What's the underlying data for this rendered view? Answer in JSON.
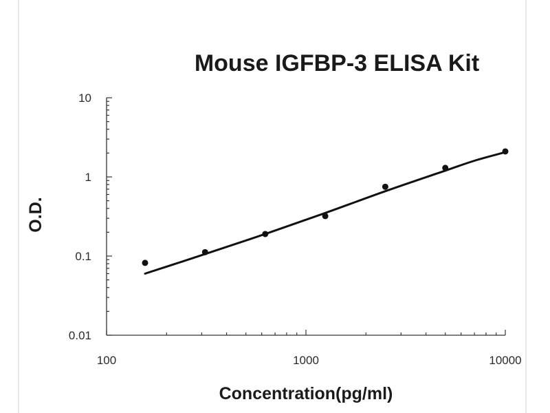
{
  "chart_data": {
    "type": "scatter",
    "title": "Mouse IGFBP-3 ELISA Kit",
    "xlabel": "Concentration(pg/ml)",
    "ylabel": "O.D.",
    "x_scale": "log",
    "y_scale": "log",
    "xlim": [
      100,
      10000
    ],
    "ylim": [
      0.01,
      10
    ],
    "x_ticks": [
      100,
      1000,
      10000
    ],
    "x_tick_labels": [
      "100",
      "1000",
      "10000"
    ],
    "y_ticks": [
      0.01,
      0.1,
      1,
      10
    ],
    "y_tick_labels": [
      "0.01",
      "0.1",
      "1",
      "10"
    ],
    "grid": false,
    "legend": "none",
    "series": [
      {
        "x": [
          156,
          312,
          625,
          1250,
          2500,
          5000,
          10000
        ],
        "y": [
          0.082,
          0.112,
          0.19,
          0.32,
          0.75,
          1.3,
          2.1
        ]
      }
    ],
    "fit_curve": {
      "x": [
        156,
        312,
        625,
        1250,
        2500,
        5000,
        7000,
        10000
      ],
      "y": [
        0.06,
        0.106,
        0.19,
        0.35,
        0.66,
        1.2,
        1.6,
        2.05
      ]
    }
  }
}
